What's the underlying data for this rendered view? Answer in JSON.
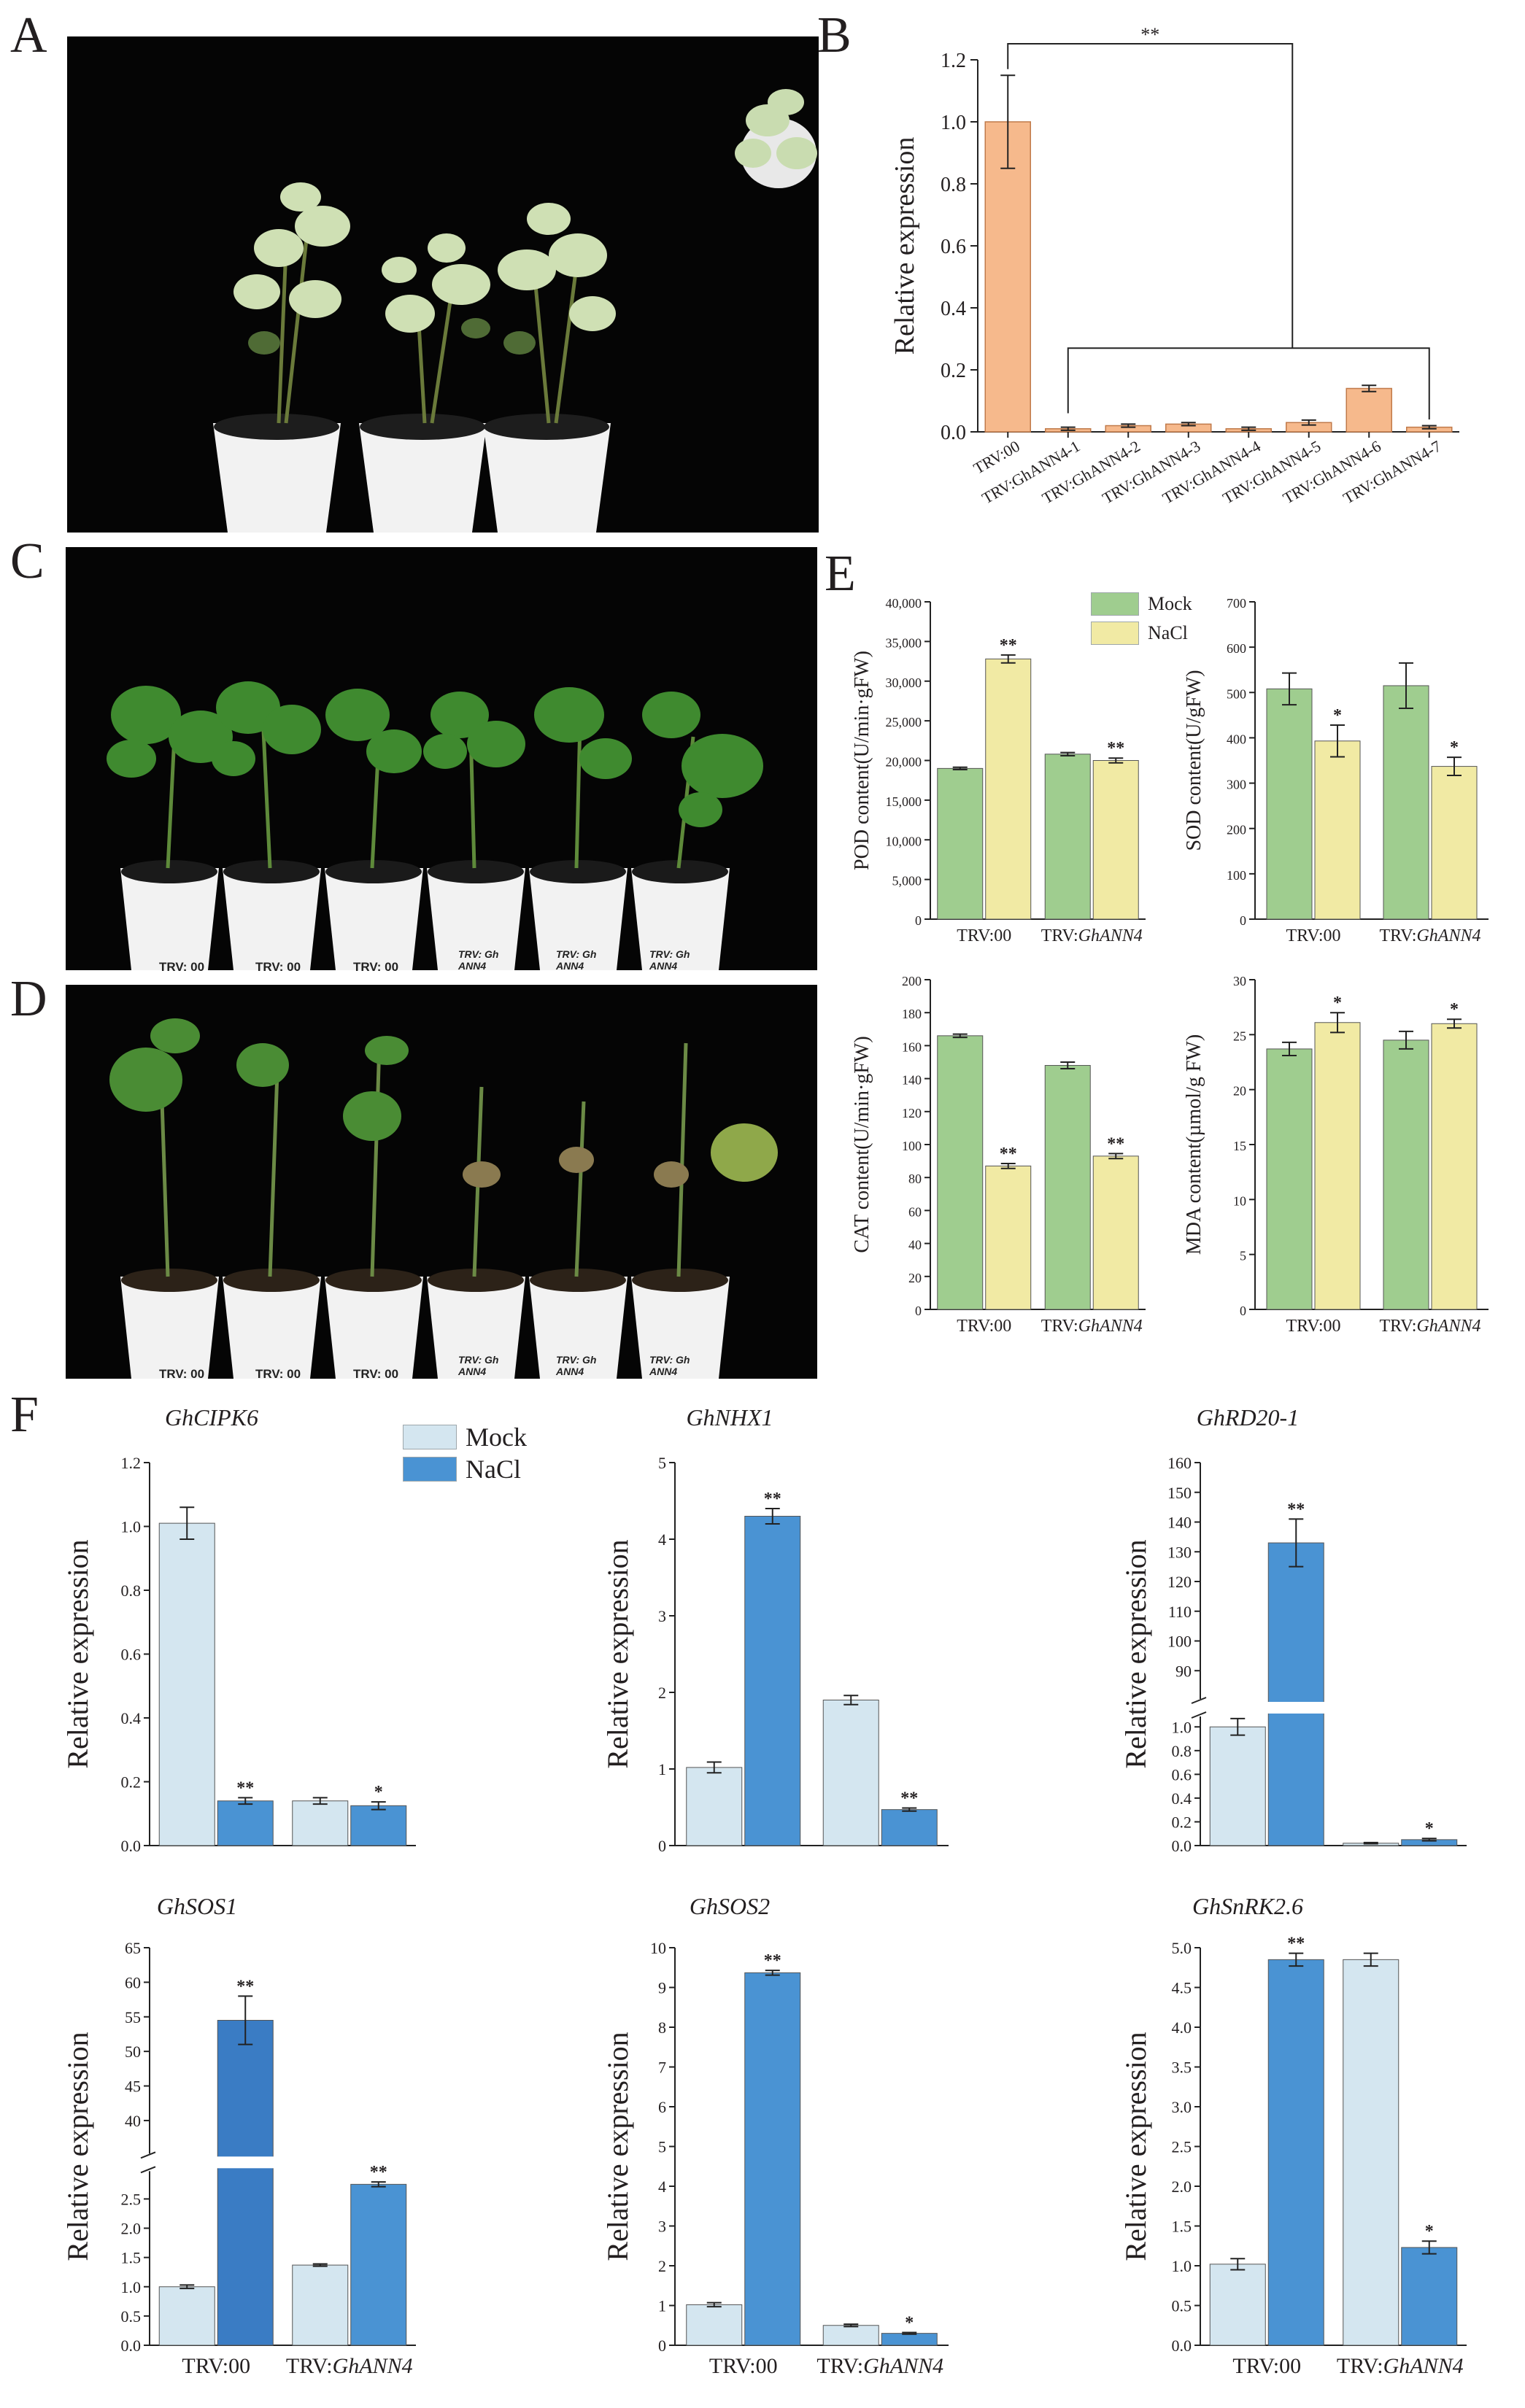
{
  "panels": {
    "A": "A",
    "B": "B",
    "C": "C",
    "D": "D",
    "E": "E",
    "F": "F"
  },
  "colors": {
    "mock_green": "#9fcd8f",
    "nacl_yellow": "#f1eaa4",
    "orange": "#f6b98c",
    "mock_blue": "#d4e6f0",
    "nacl_blue": "#4a93d3",
    "sos1_dark_blue": "#3a7cc4"
  },
  "pots_C": [
    "TRV: 00",
    "TRV: 00",
    "TRV: 00",
    "TRV: Gh ANN4",
    "TRV: Gh ANN4",
    "TRV: Gh ANN4"
  ],
  "pots_D": [
    "TRV: 00",
    "TRV: 00",
    "TRV: 00",
    "TRV: Gh ANN4",
    "TRV: Gh ANN4",
    "TRV: Gh ANN4"
  ],
  "legend_E": {
    "mock": "Mock",
    "nacl": "NaCl"
  },
  "legend_F": {
    "mock": "Mock",
    "nacl": "NaCl"
  },
  "chart_data": [
    {
      "id": "B",
      "type": "bar",
      "ylabel": "Relative expression",
      "categories": [
        "TRV:00",
        "TRV:GhANN4-1",
        "TRV:GhANN4-2",
        "TRV:GhANN4-3",
        "TRV:GhANN4-4",
        "TRV:GhANN4-5",
        "TRV:GhANN4-6",
        "TRV:GhANN4-7"
      ],
      "values": [
        1.0,
        0.01,
        0.02,
        0.025,
        0.01,
        0.03,
        0.14,
        0.015
      ],
      "errors": [
        0.15,
        0.005,
        0.005,
        0.005,
        0.005,
        0.008,
        0.01,
        0.005
      ],
      "ylim": [
        0,
        1.2
      ],
      "yticks": [
        0.0,
        0.2,
        0.4,
        0.6,
        0.8,
        1.0,
        1.2
      ],
      "significance": "**"
    },
    {
      "id": "E-POD",
      "type": "bar",
      "ylabel": "POD content(U/min·gFW)",
      "categories": [
        "TRV:00",
        "TRV:GhANN4"
      ],
      "series": [
        {
          "name": "Mock",
          "values": [
            19000,
            20800
          ],
          "errors": [
            150,
            200
          ]
        },
        {
          "name": "NaCl",
          "values": [
            32800,
            20000
          ],
          "errors": [
            500,
            300
          ]
        }
      ],
      "significance": {
        "NaCl": [
          "**",
          "**"
        ]
      },
      "ylim": [
        0,
        40000
      ],
      "yticks": [
        0,
        5000,
        10000,
        15000,
        20000,
        25000,
        30000,
        35000,
        40000
      ],
      "yticklabels": [
        "0",
        "5,000",
        "10,000",
        "15,000",
        "20,000",
        "25,000",
        "30,000",
        "35,000",
        "40,000"
      ]
    },
    {
      "id": "E-SOD",
      "type": "bar",
      "ylabel": "SOD content(U/gFW)",
      "categories": [
        "TRV:00",
        "TRV:GhANN4"
      ],
      "series": [
        {
          "name": "Mock",
          "values": [
            508,
            515
          ],
          "errors": [
            35,
            50
          ]
        },
        {
          "name": "NaCl",
          "values": [
            393,
            337
          ],
          "errors": [
            35,
            20
          ]
        }
      ],
      "significance": {
        "NaCl": [
          "*",
          "*"
        ]
      },
      "ylim": [
        0,
        700
      ],
      "yticks": [
        0,
        100,
        200,
        300,
        400,
        500,
        600,
        700
      ]
    },
    {
      "id": "E-CAT",
      "type": "bar",
      "ylabel": "CAT content(U/min·gFW)",
      "categories": [
        "TRV:00",
        "TRV:GhANN4"
      ],
      "series": [
        {
          "name": "Mock",
          "values": [
            166,
            148
          ],
          "errors": [
            1,
            2
          ]
        },
        {
          "name": "NaCl",
          "values": [
            87,
            93
          ],
          "errors": [
            1.5,
            1.5
          ]
        }
      ],
      "significance": {
        "NaCl": [
          "**",
          "**"
        ]
      },
      "ylim": [
        0,
        200
      ],
      "yticks": [
        0,
        20,
        40,
        60,
        80,
        100,
        120,
        140,
        160,
        180,
        200
      ]
    },
    {
      "id": "E-MDA",
      "type": "bar",
      "ylabel": "MDA content(µmol/g FW)",
      "categories": [
        "TRV:00",
        "TRV:GhANN4"
      ],
      "series": [
        {
          "name": "Mock",
          "values": [
            23.7,
            24.5
          ],
          "errors": [
            0.6,
            0.8
          ]
        },
        {
          "name": "NaCl",
          "values": [
            26.1,
            26.0
          ],
          "errors": [
            0.9,
            0.4
          ]
        }
      ],
      "significance": {
        "NaCl": [
          "*",
          "*"
        ]
      },
      "ylim": [
        0,
        30
      ],
      "yticks": [
        0,
        5,
        10,
        15,
        20,
        25,
        30
      ]
    },
    {
      "id": "F-GhCIPK6",
      "type": "bar",
      "title": "GhCIPK6",
      "ylabel": "Relative expression",
      "series": [
        {
          "name": "Mock",
          "values": [
            1.01,
            0.14
          ],
          "errors": [
            0.05,
            0.01
          ]
        },
        {
          "name": "NaCl",
          "values": [
            0.14,
            0.125
          ],
          "errors": [
            0.01,
            0.012
          ]
        }
      ],
      "significance": {
        "NaCl": [
          "**",
          "*"
        ]
      },
      "ylim": [
        0,
        1.2
      ],
      "yticks": [
        0.0,
        0.2,
        0.4,
        0.6,
        0.8,
        1.0,
        1.2
      ]
    },
    {
      "id": "F-GhNHX1",
      "type": "bar",
      "title": "GhNHX1",
      "ylabel": "Relative expression",
      "series": [
        {
          "name": "Mock",
          "values": [
            1.02,
            1.9
          ],
          "errors": [
            0.07,
            0.06
          ]
        },
        {
          "name": "NaCl",
          "values": [
            4.3,
            0.47
          ],
          "errors": [
            0.1,
            0.02
          ]
        }
      ],
      "significance": {
        "NaCl": [
          "**",
          "**"
        ]
      },
      "ylim": [
        0,
        5
      ],
      "yticks": [
        0,
        1,
        2,
        3,
        4,
        5
      ]
    },
    {
      "id": "F-GhRD20-1",
      "type": "bar",
      "title": "GhRD20-1",
      "ylabel": "Relative expression",
      "series": [
        {
          "name": "Mock",
          "values": [
            1.0,
            0.02
          ],
          "errors": [
            0.07,
            0.005
          ]
        },
        {
          "name": "NaCl",
          "values": [
            133,
            0.05
          ],
          "errors": [
            8,
            0.01
          ]
        }
      ],
      "significance": {
        "NaCl": [
          "**",
          "*"
        ]
      },
      "axis_break": {
        "low": [
          0,
          1.1
        ],
        "high": [
          80,
          160
        ]
      },
      "yticks_low": [
        0.0,
        0.2,
        0.4,
        0.6,
        0.8,
        1.0
      ],
      "yticks_high": [
        90,
        100,
        110,
        120,
        130,
        140,
        150,
        160
      ]
    },
    {
      "id": "F-GhSOS1",
      "type": "bar",
      "title": "GhSOS1",
      "ylabel": "Relative expression",
      "categories": [
        "TRV:00",
        "TRV:GhANN4"
      ],
      "series": [
        {
          "name": "Mock",
          "values": [
            1.0,
            1.37
          ],
          "errors": [
            0.03,
            0.02
          ]
        },
        {
          "name": "NaCl",
          "values": [
            54.5,
            2.75
          ],
          "errors": [
            3.5,
            0.04
          ]
        }
      ],
      "significance": {
        "NaCl": [
          "**",
          "**"
        ]
      },
      "axis_break": {
        "low": [
          0,
          3.0
        ],
        "high": [
          35,
          65
        ]
      },
      "yticks_low": [
        0.0,
        0.5,
        1.0,
        1.5,
        2.0,
        2.5
      ],
      "yticks_high": [
        40,
        45,
        50,
        55,
        60,
        65
      ]
    },
    {
      "id": "F-GhSOS2",
      "type": "bar",
      "title": "GhSOS2",
      "ylabel": "Relative expression",
      "categories": [
        "TRV:00",
        "TRV:GhANN4"
      ],
      "series": [
        {
          "name": "Mock",
          "values": [
            1.02,
            0.5
          ],
          "errors": [
            0.05,
            0.03
          ]
        },
        {
          "name": "NaCl",
          "values": [
            9.37,
            0.3
          ],
          "errors": [
            0.06,
            0.02
          ]
        }
      ],
      "significance": {
        "NaCl": [
          "**",
          "*"
        ]
      },
      "ylim": [
        0,
        10
      ],
      "yticks": [
        0,
        1,
        2,
        3,
        4,
        5,
        6,
        7,
        8,
        9,
        10
      ]
    },
    {
      "id": "F-GhSnRK2.6",
      "type": "bar",
      "title": "GhSnRK2.6",
      "ylabel": "Relative expression",
      "categories": [
        "TRV:00",
        "TRV:GhANN4"
      ],
      "series": [
        {
          "name": "Mock",
          "values": [
            1.02,
            4.85
          ],
          "errors": [
            0.07,
            0.08
          ]
        },
        {
          "name": "NaCl",
          "values": [
            4.85,
            1.23
          ],
          "errors": [
            0.08,
            0.08
          ]
        }
      ],
      "significance": {
        "NaCl": [
          "**",
          "*"
        ]
      },
      "ylim": [
        0,
        5.0
      ],
      "yticks": [
        0.0,
        0.5,
        1.0,
        1.5,
        2.0,
        2.5,
        3.0,
        3.5,
        4.0,
        4.5,
        5.0
      ]
    }
  ]
}
